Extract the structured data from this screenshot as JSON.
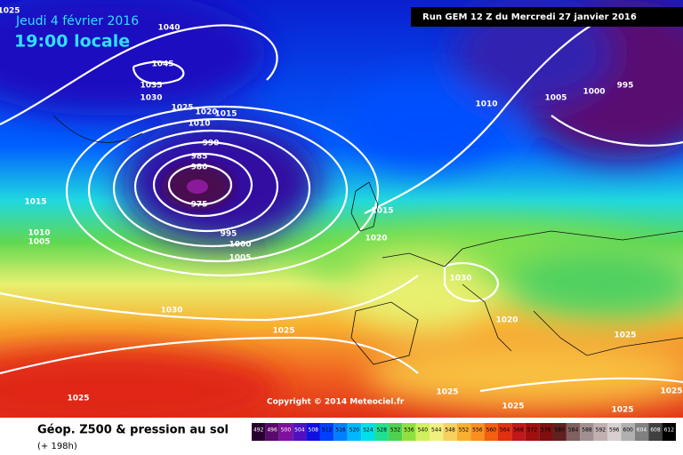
{
  "header": {
    "date": "Jeudi 4 février 2016",
    "time": "19:00 locale",
    "run": "Run GEM 12 Z du Mercredi 27 janvier 2016"
  },
  "copyright": "Copyright © 2014 Meteociel.fr",
  "legend": {
    "title": "Géop. Z500 & pression au sol",
    "lead": "(+ 198h)"
  },
  "isobar_labels": [
    1025,
    1040,
    1045,
    1035,
    1030,
    1025,
    1020,
    1015,
    1010,
    990,
    985,
    980,
    975,
    995,
    1000,
    1005,
    1015,
    1010,
    1005,
    1030,
    1025,
    1025,
    1010,
    1005,
    1000,
    995,
    1015,
    1020,
    1030,
    1020,
    1025,
    1025,
    1025,
    1025,
    1025
  ],
  "colorbar": {
    "ticks": [
      492,
      496,
      500,
      504,
      508,
      512,
      516,
      520,
      524,
      528,
      532,
      536,
      540,
      544,
      548,
      552,
      556,
      560,
      564,
      568,
      572,
      576,
      580,
      584,
      588,
      592,
      596,
      600,
      604,
      608,
      612
    ]
  }
}
